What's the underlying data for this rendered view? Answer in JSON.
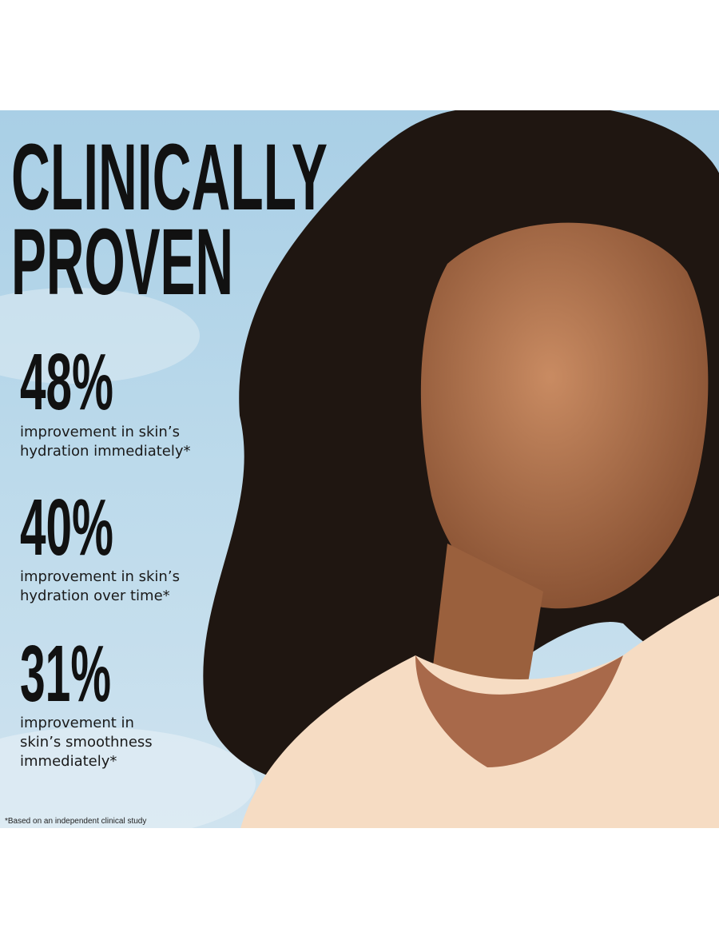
{
  "headline": [
    "CLINICALLY",
    "PROVEN"
  ],
  "stats": [
    {
      "value": "48%",
      "lines": [
        "improvement in skin’s",
        "hydration immediately*"
      ]
    },
    {
      "value": "40%",
      "lines": [
        "improvement in skin’s",
        "hydration over time*"
      ]
    },
    {
      "value": "31%",
      "lines": [
        "improvement in",
        "skin’s smoothness",
        "immediately*"
      ]
    }
  ],
  "footnote": "*Based on an independent clinical study"
}
